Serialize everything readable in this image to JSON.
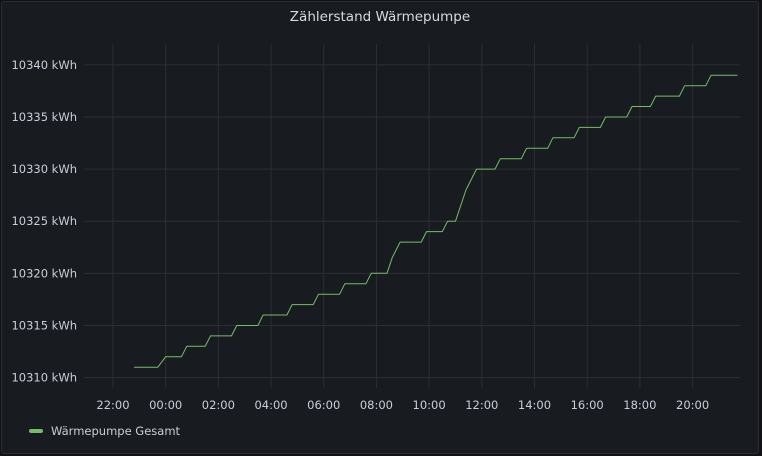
{
  "panel": {
    "title": "Zählerstand Wärmepumpe"
  },
  "chart_data": {
    "type": "line",
    "title": "Zählerstand Wärmepumpe",
    "xlabel": "",
    "ylabel": "",
    "x_ticks": [
      "22:00",
      "00:00",
      "02:00",
      "04:00",
      "06:00",
      "08:00",
      "10:00",
      "12:00",
      "14:00",
      "16:00",
      "18:00",
      "20:00"
    ],
    "y_ticks": [
      10310,
      10315,
      10320,
      10325,
      10330,
      10335,
      10340
    ],
    "y_unit": "kWh",
    "xlim": [
      -3.1,
      21.8
    ],
    "ylim": [
      10309,
      10342
    ],
    "grid": true,
    "legend_position": "bottom-left",
    "series": [
      {
        "name": "Wärmepumpe Gesamt",
        "color": "#73bf69",
        "x": [
          -1.2,
          -0.3,
          0.0,
          0.6,
          0.8,
          1.5,
          1.7,
          2.5,
          2.7,
          3.5,
          3.7,
          4.6,
          4.8,
          5.6,
          5.8,
          6.6,
          6.8,
          7.6,
          7.8,
          8.4,
          8.6,
          8.9,
          9.7,
          9.9,
          10.5,
          10.7,
          11.0,
          11.2,
          11.4,
          11.8,
          12.5,
          12.7,
          13.5,
          13.7,
          14.5,
          14.7,
          15.5,
          15.7,
          16.5,
          16.7,
          17.5,
          17.7,
          18.4,
          18.6,
          19.5,
          19.7,
          20.5,
          20.7,
          21.7
        ],
        "y": [
          10311,
          10311,
          10312,
          10312,
          10313,
          10313,
          10314,
          10314,
          10315,
          10315,
          10316,
          10316,
          10317,
          10317,
          10318,
          10318,
          10319,
          10319,
          10320,
          10320,
          10321.5,
          10323,
          10323,
          10324,
          10324,
          10325,
          10325,
          10326.5,
          10328,
          10330,
          10330,
          10331,
          10331,
          10332,
          10332,
          10333,
          10333,
          10334,
          10334,
          10335,
          10335,
          10336,
          10336,
          10337,
          10337,
          10338,
          10338,
          10339,
          10339
        ]
      }
    ]
  },
  "legend": {
    "items": [
      {
        "label": "Wärmepumpe Gesamt",
        "color": "#73bf69"
      }
    ]
  }
}
